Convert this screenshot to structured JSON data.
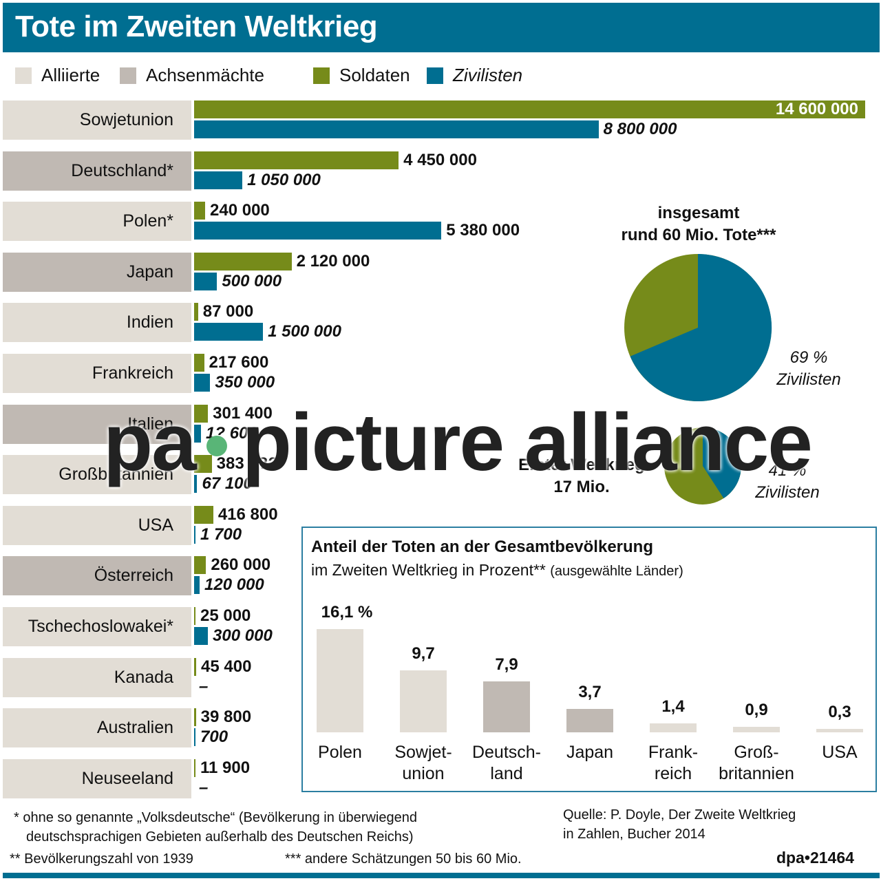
{
  "header": {
    "title": "Tote im Zweiten Weltkrieg"
  },
  "legend": {
    "alliierte": "Alliierte",
    "achsen": "Achsenmächte",
    "soldaten": "Soldaten",
    "zivilisten": "Zivilisten"
  },
  "colors": {
    "header": "#006e91",
    "soldaten": "#768b1a",
    "zivilisten": "#006e91",
    "alliierte": "#e2ddd5",
    "achsen": "#c0b9b3",
    "box_border": "#2b7ea1",
    "watermark_dot": "#59b577"
  },
  "rows": [
    {
      "country": "Sowjetunion",
      "side": "alliierte",
      "soldaten": "14 600 000",
      "zivilisten": "8 800 000"
    },
    {
      "country": "Deutschland*",
      "side": "achsen",
      "soldaten": "4 450 000",
      "zivilisten": "1 050 000"
    },
    {
      "country": "Polen*",
      "side": "alliierte",
      "soldaten": "240 000",
      "zivilisten": "5 380 000"
    },
    {
      "country": "Japan",
      "side": "achsen",
      "soldaten": "2 120 000",
      "zivilisten": "500 000"
    },
    {
      "country": "Indien",
      "side": "alliierte",
      "soldaten": "87 000",
      "zivilisten": "1 500 000"
    },
    {
      "country": "Frankreich",
      "side": "alliierte",
      "soldaten": "217 600",
      "zivilisten": "350 000"
    },
    {
      "country": "Italien",
      "side": "achsen",
      "soldaten": "301 400",
      "zivilisten": "1? 60?"
    },
    {
      "country": "Großbritannien",
      "side": "alliierte",
      "soldaten": "383 8??",
      "zivilisten": "67 100"
    },
    {
      "country": "USA",
      "side": "alliierte",
      "soldaten": "416 800",
      "zivilisten": "1 700"
    },
    {
      "country": "Österreich",
      "side": "achsen",
      "soldaten": "260 000",
      "zivilisten": "120 000"
    },
    {
      "country": "Tschechoslowakei*",
      "side": "alliierte",
      "soldaten": "25 000",
      "zivilisten": "300 000"
    },
    {
      "country": "Kanada",
      "side": "alliierte",
      "soldaten": "45 400",
      "zivilisten": "–"
    },
    {
      "country": "Australien",
      "side": "alliierte",
      "soldaten": "39 800",
      "zivilisten": "700"
    },
    {
      "country": "Neuseeland",
      "side": "alliierte",
      "soldaten": "11 900",
      "zivilisten": "–"
    }
  ],
  "pie_ww2": {
    "title_line1": "insgesamt",
    "title_line2": "rund 60 Mio. Tote***",
    "pct": "69 %",
    "label": "Zivilisten"
  },
  "pie_ww1": {
    "title_line1": "Erster Weltkrieg",
    "title_line2": "17 Mio.",
    "pct": "41 %",
    "label": "Zivilisten"
  },
  "box": {
    "title": "Anteil der Toten an der Gesamtbevölkerung",
    "subtitle": "im Zweiten Weltkrieg in Prozent**",
    "subtitle_small": "(ausgewählte Länder)",
    "bars": [
      {
        "label1": "Polen",
        "label2": "",
        "value": "16,1 %"
      },
      {
        "label1": "Sowjet-",
        "label2": "union",
        "value": "9,7"
      },
      {
        "label1": "Deutsch-",
        "label2": "land",
        "value": "7,9"
      },
      {
        "label1": "Japan",
        "label2": "",
        "value": "3,7"
      },
      {
        "label1": "Frank-",
        "label2": "reich",
        "value": "1,4"
      },
      {
        "label1": "Groß-",
        "label2": "britannien",
        "value": "0,9"
      },
      {
        "label1": "USA",
        "label2": "",
        "value": "0,3"
      }
    ]
  },
  "footnotes": {
    "f1_line1": "* ohne so genannte „Volksdeutsche“ (Bevölkerung in überwiegend",
    "f1_line2": "deutschsprachigen Gebieten außerhalb des Deutschen Reichs)",
    "f2": "** Bevölkerungszahl von 1939",
    "f3": "*** andere Schätzungen 50 bis 60 Mio.",
    "source_line1": "Quelle: P. Doyle, Der Zweite Weltkrieg",
    "source_line2": "in Zahlen, Bucher 2014",
    "credit": "dpa•21464"
  },
  "watermark": {
    "left": "pa",
    "right": "picture alliance"
  },
  "chart_data": [
    {
      "type": "bar",
      "title": "Tote im Zweiten Weltkrieg",
      "orientation": "horizontal",
      "categories": [
        "Sowjetunion",
        "Deutschland*",
        "Polen*",
        "Japan",
        "Indien",
        "Frankreich",
        "Italien",
        "Großbritannien",
        "USA",
        "Österreich",
        "Tschechoslowakei*",
        "Kanada",
        "Australien",
        "Neuseeland"
      ],
      "series": [
        {
          "name": "Soldaten",
          "values": [
            14600000,
            4450000,
            240000,
            2120000,
            87000,
            217600,
            301400,
            383800,
            416800,
            260000,
            25000,
            45400,
            39800,
            11900
          ]
        },
        {
          "name": "Zivilisten",
          "values": [
            8800000,
            1050000,
            5380000,
            500000,
            1500000,
            350000,
            150000,
            67100,
            1700,
            120000,
            300000,
            0,
            700,
            0
          ]
        }
      ],
      "groups": {
        "Alliierte": [
          "Sowjetunion",
          "Polen*",
          "Indien",
          "Frankreich",
          "Großbritannien",
          "USA",
          "Tschechoslowakei*",
          "Kanada",
          "Australien",
          "Neuseeland"
        ],
        "Achsenmächte": [
          "Deutschland*",
          "Japan",
          "Italien",
          "Österreich"
        ]
      },
      "legend": [
        "Alliierte",
        "Achsenmächte",
        "Soldaten",
        "Zivilisten"
      ]
    },
    {
      "type": "pie",
      "title": "insgesamt rund 60 Mio. Tote***",
      "categories": [
        "Zivilisten",
        "Soldaten"
      ],
      "values": [
        69,
        31
      ]
    },
    {
      "type": "pie",
      "title": "Erster Weltkrieg 17 Mio.",
      "categories": [
        "Zivilisten",
        "Soldaten"
      ],
      "values": [
        41,
        59
      ]
    },
    {
      "type": "bar",
      "title": "Anteil der Toten an der Gesamtbevölkerung im Zweiten Weltkrieg in Prozent** (ausgewählte Länder)",
      "categories": [
        "Polen",
        "Sowjetunion",
        "Deutschland",
        "Japan",
        "Frankreich",
        "Großbritannien",
        "USA"
      ],
      "values": [
        16.1,
        9.7,
        7.9,
        3.7,
        1.4,
        0.9,
        0.3
      ],
      "ylabel": "%"
    }
  ]
}
